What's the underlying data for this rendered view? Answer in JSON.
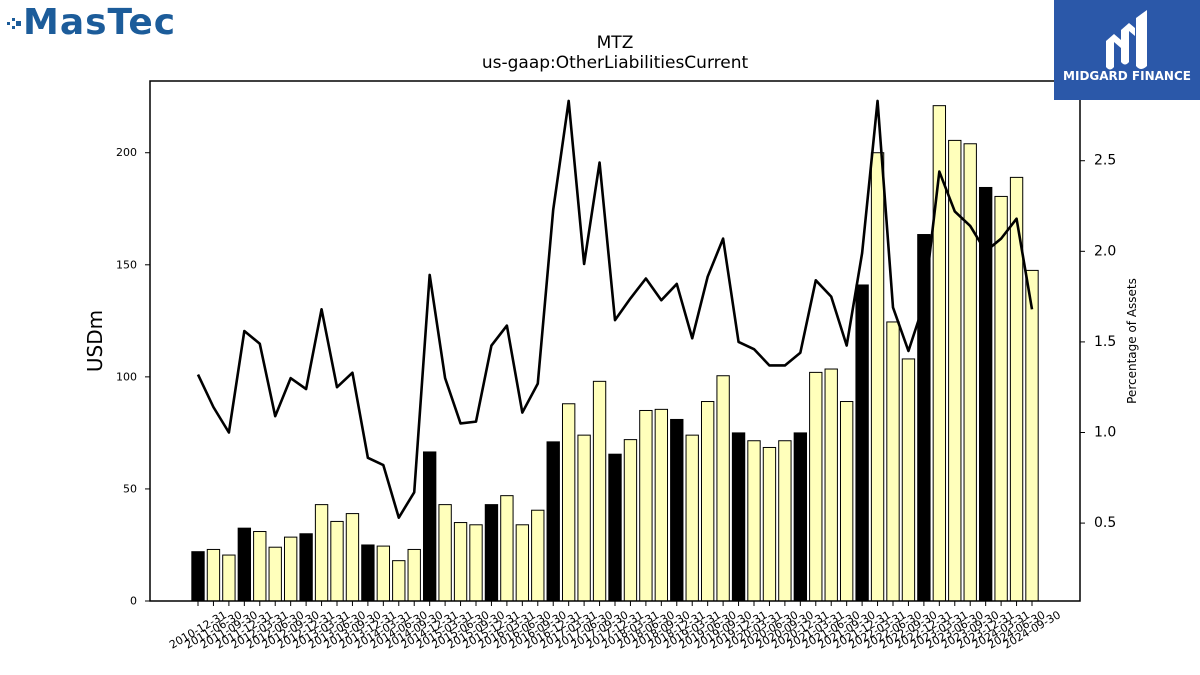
{
  "logos": {
    "top_left": {
      "text": "MasTec",
      "color": "#1c5c9a"
    },
    "top_right": {
      "text": "MIDGARD FINANCE",
      "background": "#2b58a9",
      "foreground": "#ffffff"
    }
  },
  "chart_data": {
    "type": "bar",
    "title": "MTZ",
    "subtitle": "us-gaap:OtherLiabilitiesCurrent",
    "ylabel": "USDm",
    "y2label": "Percentage of Assets",
    "ylim": [
      0,
      232
    ],
    "y2lim": [
      0.07,
      2.94
    ],
    "yticks": [
      "0",
      "50",
      "100",
      "150",
      "200"
    ],
    "y2ticks": [
      "0.5",
      "1.0",
      "1.5",
      "2.0",
      "2.5"
    ],
    "categories": [
      "2010-12-31",
      "2011-06-30",
      "2011-09-30",
      "2011-12-31",
      "2012-03-31",
      "2012-06-30",
      "2012-09-30",
      "2012-12-31",
      "2013-03-31",
      "2013-06-30",
      "2013-09-30",
      "2013-12-31",
      "2014-03-31",
      "2014-06-30",
      "2014-09-30",
      "2014-12-31",
      "2015-03-31",
      "2015-06-30",
      "2015-09-30",
      "2015-12-31",
      "2016-03-31",
      "2016-06-30",
      "2016-09-30",
      "2016-12-31",
      "2017-03-31",
      "2017-06-30",
      "2017-09-30",
      "2017-12-31",
      "2018-03-31",
      "2018-06-30",
      "2018-09-30",
      "2018-12-31",
      "2019-03-31",
      "2019-06-30",
      "2019-09-30",
      "2019-12-31",
      "2020-03-31",
      "2020-06-30",
      "2020-09-30",
      "2020-12-31",
      "2021-03-31",
      "2021-06-30",
      "2021-09-30",
      "2021-12-31",
      "2022-03-31",
      "2022-06-30",
      "2022-09-30",
      "2022-12-31",
      "2023-03-31",
      "2023-06-30",
      "2023-09-30",
      "2023-12-31",
      "2024-03-31",
      "2024-06-30",
      "2024-09-30"
    ],
    "series": [
      {
        "type": "bar",
        "axis": "left",
        "values": [
          22,
          23,
          20.5,
          32.5,
          31,
          24,
          28.5,
          30,
          43,
          35.5,
          39,
          25,
          24.5,
          18,
          23,
          66.5,
          43,
          35,
          34,
          43,
          47,
          34,
          40.5,
          71,
          88,
          74,
          98,
          65.5,
          72,
          85,
          85.5,
          81,
          74,
          89,
          100.5,
          75,
          71.5,
          68.5,
          71.5,
          75,
          102,
          103.5,
          89,
          141,
          200,
          124.5,
          108,
          163.5,
          221,
          205.5,
          204,
          184.5,
          180.5,
          189,
          147.5
        ]
      },
      {
        "type": "line",
        "axis": "right",
        "values": [
          1.32,
          1.14,
          1.0,
          1.56,
          1.49,
          1.09,
          1.3,
          1.24,
          1.68,
          1.25,
          1.33,
          0.86,
          0.82,
          0.53,
          0.67,
          1.87,
          1.3,
          1.05,
          1.06,
          1.48,
          1.59,
          1.11,
          1.27,
          2.23,
          2.83,
          1.93,
          2.49,
          1.62,
          1.74,
          1.85,
          1.73,
          1.82,
          1.52,
          1.86,
          2.07,
          1.5,
          1.46,
          1.37,
          1.37,
          1.44,
          1.84,
          1.75,
          1.48,
          1.99,
          2.83,
          1.69,
          1.45,
          1.71,
          2.44,
          2.22,
          2.14,
          2.0,
          2.07,
          2.18,
          1.68
        ]
      }
    ],
    "highlighted_categories": [
      "2010-12-31",
      "2011-12-31",
      "2012-12-31",
      "2013-12-31",
      "2014-12-31",
      "2015-12-31",
      "2016-12-31",
      "2017-12-31",
      "2018-12-31",
      "2019-12-31",
      "2020-12-31",
      "2021-12-31",
      "2022-12-31",
      "2023-12-31"
    ],
    "colors": {
      "bar": "#ffffbb",
      "bar_highlight": "#000000",
      "bar_edge": "#000000",
      "line": "#000000"
    },
    "grid": false,
    "legend": "none"
  }
}
